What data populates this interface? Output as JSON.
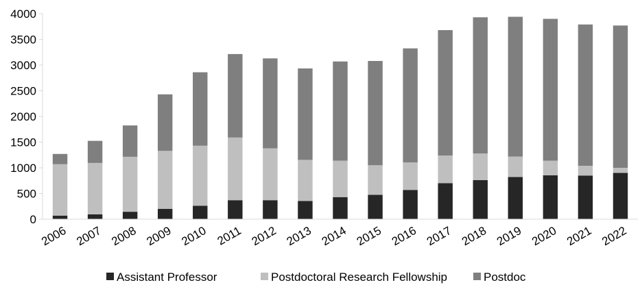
{
  "chart_data": {
    "type": "bar",
    "stacked": true,
    "categories": [
      "2006",
      "2007",
      "2008",
      "2009",
      "2010",
      "2011",
      "2012",
      "2013",
      "2014",
      "2015",
      "2016",
      "2017",
      "2018",
      "2019",
      "2020",
      "2021",
      "2022"
    ],
    "series": [
      {
        "name": "Assistant Professor",
        "color": "#262626",
        "values": [
          70,
          95,
          145,
          200,
          260,
          370,
          370,
          355,
          430,
          475,
          570,
          700,
          760,
          820,
          855,
          850,
          900
        ]
      },
      {
        "name": "Postdoctoral Research Fellowship",
        "color": "#bfbfbf",
        "values": [
          1000,
          1000,
          1070,
          1130,
          1170,
          1220,
          1010,
          800,
          710,
          575,
          535,
          540,
          520,
          400,
          285,
          190,
          100
        ]
      },
      {
        "name": "Postdoc",
        "color": "#7f7f7f",
        "values": [
          200,
          430,
          610,
          1100,
          1430,
          1625,
          1750,
          1780,
          1930,
          2030,
          2220,
          2440,
          2650,
          2720,
          2760,
          2750,
          2770
        ]
      }
    ],
    "ylim": [
      0,
      4000
    ],
    "yticks": [
      0,
      500,
      1000,
      1500,
      2000,
      2500,
      3000,
      3500,
      4000
    ],
    "grid": false,
    "legend_position": "bottom",
    "xlabel": "",
    "ylabel": "",
    "title": ""
  }
}
